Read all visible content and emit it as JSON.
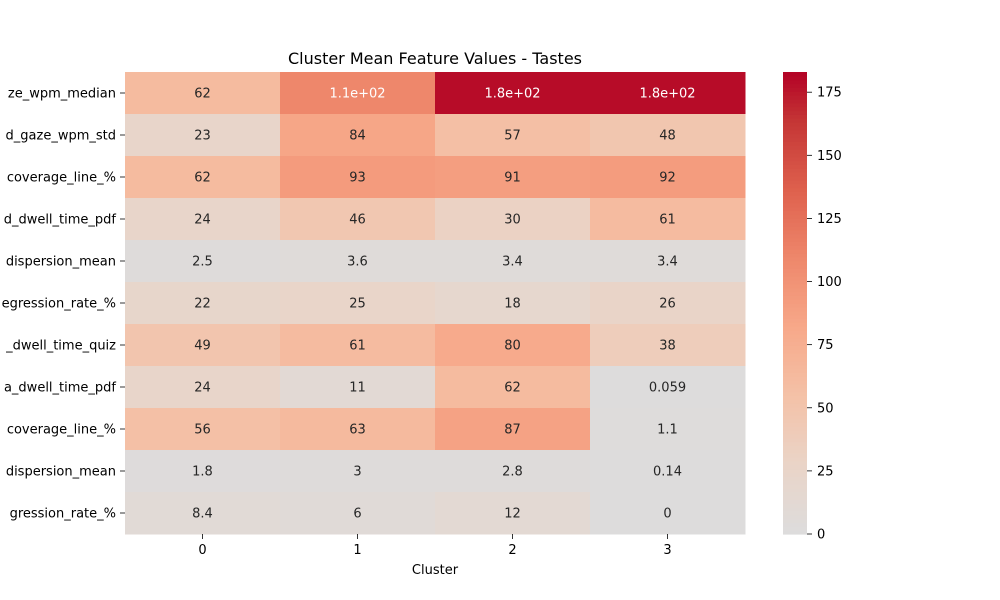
{
  "chart_data": {
    "type": "heatmap",
    "title": "Cluster Mean Feature Values - Tastes",
    "xlabel": "Cluster",
    "ylabel": "",
    "x_labels": [
      "0",
      "1",
      "2",
      "3"
    ],
    "y_labels": [
      "ze_wpm_median",
      "d_gaze_wpm_std",
      "coverage_line_%",
      "d_dwell_time_pdf",
      "dispersion_mean",
      "egression_rate_%",
      "_dwell_time_quiz",
      "a_dwell_time_pdf",
      "coverage_line_%",
      "dispersion_mean",
      "gression_rate_%"
    ],
    "values": [
      [
        62,
        110,
        180,
        180
      ],
      [
        23,
        84,
        57,
        48
      ],
      [
        62,
        93,
        91,
        92
      ],
      [
        24,
        46,
        30,
        61
      ],
      [
        2.5,
        3.6,
        3.4,
        3.4
      ],
      [
        22,
        25,
        18,
        26
      ],
      [
        49,
        61,
        80,
        38
      ],
      [
        24,
        11,
        62,
        0.059
      ],
      [
        56,
        63,
        87,
        1.1
      ],
      [
        1.8,
        3,
        2.8,
        0.14
      ],
      [
        8.4,
        6,
        12,
        0
      ]
    ],
    "annotations": [
      [
        "62",
        "1.1e+02",
        "1.8e+02",
        "1.8e+02"
      ],
      [
        "23",
        "84",
        "57",
        "48"
      ],
      [
        "62",
        "93",
        "91",
        "92"
      ],
      [
        "24",
        "46",
        "30",
        "61"
      ],
      [
        "2.5",
        "3.6",
        "3.4",
        "3.4"
      ],
      [
        "22",
        "25",
        "18",
        "26"
      ],
      [
        "49",
        "61",
        "80",
        "38"
      ],
      [
        "24",
        "11",
        "62",
        "0.059"
      ],
      [
        "56",
        "63",
        "87",
        "1.1"
      ],
      [
        "1.8",
        "3",
        "2.8",
        "0.14"
      ],
      [
        "8.4",
        "6",
        "12",
        "0"
      ]
    ],
    "colormap": "coolwarm-centered",
    "vmin": 0,
    "vmax": 183,
    "colorbar_ticks": [
      0,
      25,
      50,
      75,
      100,
      125,
      150,
      175
    ]
  }
}
